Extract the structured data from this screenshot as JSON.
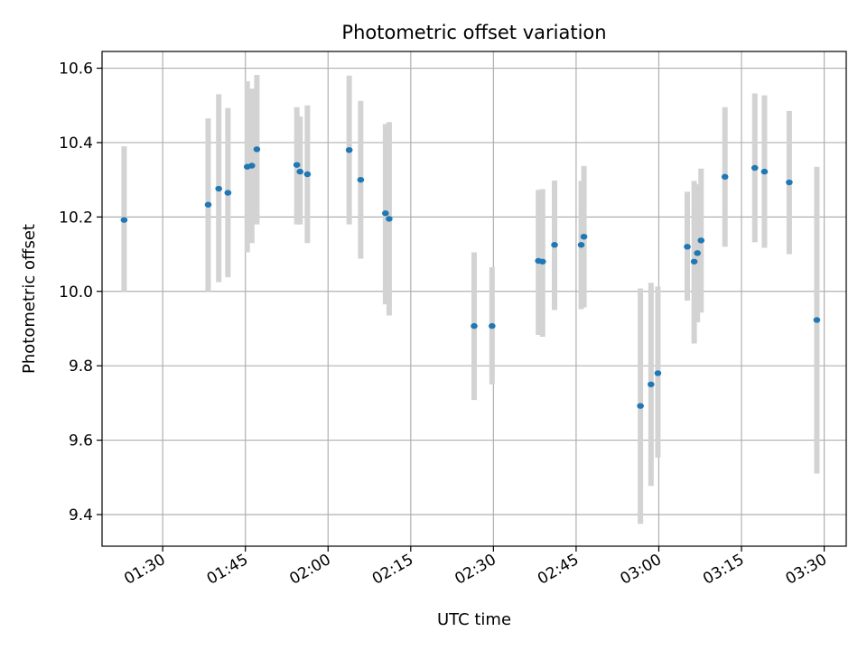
{
  "chart_data": {
    "type": "scatter",
    "title": "Photometric offset variation",
    "xlabel": "UTC time",
    "ylabel": "Photometric offset",
    "x_axis": {
      "type": "time",
      "range": [
        "01:19",
        "03:34"
      ],
      "ticks": [
        "01:30",
        "01:45",
        "02:00",
        "02:15",
        "02:30",
        "02:45",
        "03:00",
        "03:15",
        "03:30"
      ]
    },
    "y_axis": {
      "range": [
        9.315,
        10.645
      ],
      "ticks": [
        "9.4",
        "9.6",
        "9.8",
        "10.0",
        "10.2",
        "10.4",
        "10.6"
      ]
    },
    "grid": true,
    "colors": {
      "point": "#1f77b4",
      "errorbar": "#d3d3d3",
      "grid": "#b0b0b0",
      "axes": "#000000"
    },
    "points": [
      {
        "x": "01:23:00",
        "y": 10.192,
        "y_low": 10.0,
        "y_high": 10.39
      },
      {
        "x": "01:38:15",
        "y": 10.233,
        "y_low": 10.0,
        "y_high": 10.465
      },
      {
        "x": "01:40:10",
        "y": 10.276,
        "y_low": 10.025,
        "y_high": 10.53
      },
      {
        "x": "01:41:50",
        "y": 10.265,
        "y_low": 10.038,
        "y_high": 10.493
      },
      {
        "x": "01:45:20",
        "y": 10.335,
        "y_low": 10.105,
        "y_high": 10.565
      },
      {
        "x": "01:46:10",
        "y": 10.338,
        "y_low": 10.13,
        "y_high": 10.545
      },
      {
        "x": "01:47:05",
        "y": 10.382,
        "y_low": 10.18,
        "y_high": 10.582
      },
      {
        "x": "01:54:20",
        "y": 10.34,
        "y_low": 10.18,
        "y_high": 10.495
      },
      {
        "x": "01:54:55",
        "y": 10.322,
        "y_low": 10.18,
        "y_high": 10.47
      },
      {
        "x": "01:56:15",
        "y": 10.315,
        "y_low": 10.13,
        "y_high": 10.5
      },
      {
        "x": "02:03:50",
        "y": 10.38,
        "y_low": 10.18,
        "y_high": 10.58
      },
      {
        "x": "02:05:55",
        "y": 10.3,
        "y_low": 10.088,
        "y_high": 10.512
      },
      {
        "x": "02:10:25",
        "y": 10.21,
        "y_low": 9.965,
        "y_high": 10.45
      },
      {
        "x": "02:11:05",
        "y": 10.195,
        "y_low": 9.935,
        "y_high": 10.455
      },
      {
        "x": "02:26:30",
        "y": 9.907,
        "y_low": 9.708,
        "y_high": 10.105
      },
      {
        "x": "02:29:45",
        "y": 9.907,
        "y_low": 9.75,
        "y_high": 10.065
      },
      {
        "x": "02:38:10",
        "y": 10.082,
        "y_low": 9.883,
        "y_high": 10.273
      },
      {
        "x": "02:38:55",
        "y": 10.08,
        "y_low": 9.878,
        "y_high": 10.275
      },
      {
        "x": "02:41:05",
        "y": 10.125,
        "y_low": 9.95,
        "y_high": 10.298
      },
      {
        "x": "02:45:55",
        "y": 10.125,
        "y_low": 9.952,
        "y_high": 10.297
      },
      {
        "x": "02:46:25",
        "y": 10.147,
        "y_low": 9.957,
        "y_high": 10.337
      },
      {
        "x": "02:56:40",
        "y": 9.692,
        "y_low": 9.375,
        "y_high": 10.008
      },
      {
        "x": "02:58:35",
        "y": 9.75,
        "y_low": 9.477,
        "y_high": 10.023
      },
      {
        "x": "02:59:50",
        "y": 9.78,
        "y_low": 9.553,
        "y_high": 10.013
      },
      {
        "x": "03:05:10",
        "y": 10.12,
        "y_low": 9.975,
        "y_high": 10.268
      },
      {
        "x": "03:06:25",
        "y": 10.08,
        "y_low": 9.86,
        "y_high": 10.297
      },
      {
        "x": "03:07:00",
        "y": 10.103,
        "y_low": 9.917,
        "y_high": 10.288
      },
      {
        "x": "03:07:40",
        "y": 10.137,
        "y_low": 9.943,
        "y_high": 10.33
      },
      {
        "x": "03:12:00",
        "y": 10.308,
        "y_low": 10.12,
        "y_high": 10.495
      },
      {
        "x": "03:17:25",
        "y": 10.332,
        "y_low": 10.132,
        "y_high": 10.532
      },
      {
        "x": "03:19:10",
        "y": 10.322,
        "y_low": 10.117,
        "y_high": 10.527
      },
      {
        "x": "03:23:40",
        "y": 10.293,
        "y_low": 10.1,
        "y_high": 10.485
      },
      {
        "x": "03:28:40",
        "y": 9.923,
        "y_low": 9.51,
        "y_high": 10.335
      }
    ]
  }
}
